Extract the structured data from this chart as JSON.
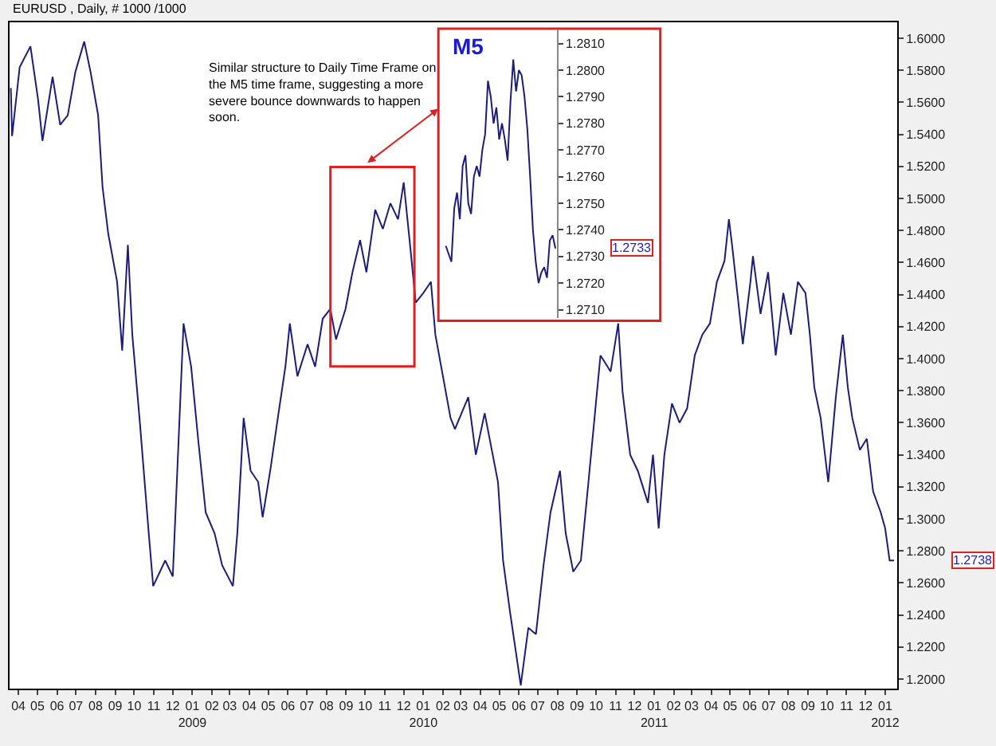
{
  "chart_data": [
    {
      "type": "line",
      "title": "EURUSD , Daily, # 1000 /1000",
      "x": [
        "2008-03-20",
        "2008-03-22",
        "2008-04-03",
        "2008-04-20",
        "2008-05-02",
        "2008-05-09",
        "2008-05-25",
        "2008-06-06",
        "2008-06-18",
        "2008-06-30",
        "2008-07-14",
        "2008-07-24",
        "2008-08-05",
        "2008-08-12",
        "2008-08-21",
        "2008-09-04",
        "2008-09-12",
        "2008-09-21",
        "2008-09-28",
        "2008-10-10",
        "2008-10-24",
        "2008-10-31",
        "2008-11-19",
        "2008-12-01",
        "2008-12-18",
        "2008-12-30",
        "2009-01-10",
        "2009-01-22",
        "2009-02-05",
        "2009-02-17",
        "2009-03-06",
        "2009-03-13",
        "2009-03-23",
        "2009-04-03",
        "2009-04-15",
        "2009-04-22",
        "2009-05-04",
        "2009-05-16",
        "2009-05-28",
        "2009-06-04",
        "2009-06-16",
        "2009-07-02",
        "2009-07-14",
        "2009-07-26",
        "2009-08-07",
        "2009-08-16",
        "2009-08-31",
        "2009-09-11",
        "2009-09-23",
        "2009-10-03",
        "2009-10-17",
        "2009-10-29",
        "2009-11-10",
        "2009-11-22",
        "2009-12-01",
        "2009-12-11",
        "2009-12-20",
        "2010-01-01",
        "2010-01-13",
        "2010-01-20",
        "2010-02-01",
        "2010-02-13",
        "2010-02-20",
        "2010-03-13",
        "2010-03-25",
        "2010-04-08",
        "2010-04-29",
        "2010-05-07",
        "2010-05-18",
        "2010-06-04",
        "2010-06-16",
        "2010-06-28",
        "2010-07-10",
        "2010-07-21",
        "2010-08-05",
        "2010-08-14",
        "2010-08-26",
        "2010-09-07",
        "2010-09-19",
        "2010-09-30",
        "2010-10-08",
        "2010-10-24",
        "2010-11-05",
        "2010-11-12",
        "2010-11-24",
        "2010-12-06",
        "2010-12-22",
        "2010-12-30",
        "2011-01-08",
        "2011-01-17",
        "2011-01-29",
        "2011-02-10",
        "2011-02-22",
        "2011-03-06",
        "2011-03-18",
        "2011-03-30",
        "2011-04-10",
        "2011-04-22",
        "2011-04-29",
        "2011-05-04",
        "2011-05-14",
        "2011-05-21",
        "2011-06-02",
        "2011-06-06",
        "2011-06-18",
        "2011-06-30",
        "2011-07-12",
        "2011-07-24",
        "2011-08-05",
        "2011-08-16",
        "2011-08-28",
        "2011-09-04",
        "2011-09-11",
        "2011-09-21",
        "2011-10-03",
        "2011-10-15",
        "2011-10-26",
        "2011-11-03",
        "2011-11-10",
        "2011-11-22",
        "2011-12-03",
        "2011-12-13",
        "2011-12-25",
        "2012-01-01",
        "2012-01-08",
        "2012-01-15"
      ],
      "series": [
        {
          "color": "#1c1c7a",
          "values": [
            1.569,
            1.539,
            1.582,
            1.595,
            1.562,
            1.536,
            1.576,
            1.546,
            1.552,
            1.579,
            1.598,
            1.579,
            1.552,
            1.507,
            1.478,
            1.448,
            1.405,
            1.471,
            1.415,
            1.36,
            1.291,
            1.258,
            1.274,
            1.264,
            1.422,
            1.395,
            1.35,
            1.304,
            1.291,
            1.271,
            1.258,
            1.291,
            1.363,
            1.33,
            1.323,
            1.301,
            1.33,
            1.363,
            1.395,
            1.422,
            1.389,
            1.409,
            1.395,
            1.425,
            1.431,
            1.412,
            1.431,
            1.454,
            1.474,
            1.454,
            1.493,
            1.481,
            1.497,
            1.487,
            1.51,
            1.471,
            1.435,
            1.441,
            1.448,
            1.415,
            1.389,
            1.363,
            1.356,
            1.376,
            1.34,
            1.366,
            1.323,
            1.274,
            1.242,
            1.196,
            1.232,
            1.228,
            1.271,
            1.304,
            1.33,
            1.291,
            1.267,
            1.274,
            1.323,
            1.369,
            1.402,
            1.392,
            1.422,
            1.379,
            1.34,
            1.33,
            1.31,
            1.34,
            1.294,
            1.34,
            1.372,
            1.36,
            1.369,
            1.402,
            1.415,
            1.422,
            1.448,
            1.461,
            1.487,
            1.471,
            1.435,
            1.409,
            1.448,
            1.464,
            1.428,
            1.454,
            1.402,
            1.441,
            1.415,
            1.448,
            1.441,
            1.415,
            1.382,
            1.363,
            1.323,
            1.376,
            1.415,
            1.382,
            1.363,
            1.343,
            1.35,
            1.317,
            1.304,
            1.294,
            1.274,
            1.274
          ]
        }
      ],
      "xlim": [
        "2008-03-18",
        "2012-01-20"
      ],
      "xticks": [
        {
          "value": "2008-04",
          "label": "04"
        },
        {
          "value": "2008-05",
          "label": "05"
        },
        {
          "value": "2008-06",
          "label": "06"
        },
        {
          "value": "2008-07",
          "label": "07"
        },
        {
          "value": "2008-08",
          "label": "08"
        },
        {
          "value": "2008-09",
          "label": "09"
        },
        {
          "value": "2008-10",
          "label": "10"
        },
        {
          "value": "2008-11",
          "label": "11"
        },
        {
          "value": "2008-12",
          "label": "12"
        },
        {
          "value": "2009-01",
          "label": "01\n2009"
        },
        {
          "value": "2009-02",
          "label": "02"
        },
        {
          "value": "2009-03",
          "label": "03"
        },
        {
          "value": "2009-04",
          "label": "04"
        },
        {
          "value": "2009-05",
          "label": "05"
        },
        {
          "value": "2009-06",
          "label": "06"
        },
        {
          "value": "2009-07",
          "label": "07"
        },
        {
          "value": "2009-08",
          "label": "08"
        },
        {
          "value": "2009-09",
          "label": "09"
        },
        {
          "value": "2009-10",
          "label": "10"
        },
        {
          "value": "2009-11",
          "label": "11"
        },
        {
          "value": "2009-12",
          "label": "12"
        },
        {
          "value": "2010-01",
          "label": "01\n2010"
        },
        {
          "value": "2010-02",
          "label": "02"
        },
        {
          "value": "2010-03",
          "label": "03"
        },
        {
          "value": "2010-04",
          "label": "04"
        },
        {
          "value": "2010-05",
          "label": "05"
        },
        {
          "value": "2010-06",
          "label": "06"
        },
        {
          "value": "2010-07",
          "label": "07"
        },
        {
          "value": "2010-08",
          "label": "08"
        },
        {
          "value": "2010-09",
          "label": "09"
        },
        {
          "value": "2010-10",
          "label": "10"
        },
        {
          "value": "2010-11",
          "label": "11"
        },
        {
          "value": "2010-12",
          "label": "12"
        },
        {
          "value": "2011-01",
          "label": "01\n2011"
        },
        {
          "value": "2011-02",
          "label": "02"
        },
        {
          "value": "2011-03",
          "label": "03"
        },
        {
          "value": "2011-04",
          "label": "04"
        },
        {
          "value": "2011-05",
          "label": "05"
        },
        {
          "value": "2011-06",
          "label": "06"
        },
        {
          "value": "2011-07",
          "label": "07"
        },
        {
          "value": "2011-08",
          "label": "08"
        },
        {
          "value": "2011-09",
          "label": "09"
        },
        {
          "value": "2011-10",
          "label": "10"
        },
        {
          "value": "2011-11",
          "label": "11"
        },
        {
          "value": "2011-12",
          "label": "12"
        },
        {
          "value": "2012-01",
          "label": "01\n2012"
        }
      ],
      "ylim": [
        1.194,
        1.61
      ],
      "yticks": [
        {
          "value": 1.2,
          "label": "1.2000"
        },
        {
          "value": 1.22,
          "label": "1.2200"
        },
        {
          "value": 1.24,
          "label": "1.2400"
        },
        {
          "value": 1.26,
          "label": "1.2600"
        },
        {
          "value": 1.28,
          "label": "1.2800"
        },
        {
          "value": 1.3,
          "label": "1.3000"
        },
        {
          "value": 1.32,
          "label": "1.3200"
        },
        {
          "value": 1.34,
          "label": "1.3400"
        },
        {
          "value": 1.36,
          "label": "1.3600"
        },
        {
          "value": 1.38,
          "label": "1.3800"
        },
        {
          "value": 1.4,
          "label": "1.4000"
        },
        {
          "value": 1.42,
          "label": "1.4200"
        },
        {
          "value": 1.44,
          "label": "1.4400"
        },
        {
          "value": 1.46,
          "label": "1.4600"
        },
        {
          "value": 1.48,
          "label": "1.4800"
        },
        {
          "value": 1.5,
          "label": "1.5000"
        },
        {
          "value": 1.52,
          "label": "1.5200"
        },
        {
          "value": 1.54,
          "label": "1.5400"
        },
        {
          "value": 1.56,
          "label": "1.5600"
        },
        {
          "value": 1.58,
          "label": "1.5800"
        },
        {
          "value": 1.6,
          "label": "1.6000"
        }
      ],
      "annotations": [
        "Similar structure to Daily Time Frame on\nthe M5 time frame, suggesting a more\nsevere bounce downwards to happen\nsoon.",
        "1.2738"
      ]
    },
    {
      "type": "line",
      "title": "M5",
      "categories": [
        null,
        null,
        null,
        null,
        null,
        null,
        null,
        null,
        null,
        null,
        null,
        null,
        null,
        null,
        null,
        null,
        null,
        null,
        null,
        null,
        null,
        null,
        null,
        null,
        null,
        null,
        null,
        null,
        null,
        null,
        null,
        null,
        null,
        null,
        null,
        null,
        null,
        null,
        null,
        null
      ],
      "series": [
        {
          "color": "#1c1c7a",
          "values": [
            1.2734,
            1.2731,
            1.2728,
            1.2748,
            1.2754,
            1.2744,
            1.2764,
            1.2768,
            1.275,
            1.2746,
            1.276,
            1.2764,
            1.276,
            1.277,
            1.2776,
            1.2796,
            1.279,
            1.278,
            1.2786,
            1.2774,
            1.278,
            1.2774,
            1.2766,
            1.2788,
            1.2804,
            1.2792,
            1.28,
            1.2798,
            1.279,
            1.2778,
            1.276,
            1.274,
            1.2728,
            1.272,
            1.2724,
            1.2726,
            1.2722,
            1.2736,
            1.2738,
            1.2733
          ]
        }
      ],
      "ylim": [
        1.2707,
        1.2815
      ],
      "yticks": [
        {
          "value": 1.271,
          "label": "1.2710"
        },
        {
          "value": 1.272,
          "label": "1.2720"
        },
        {
          "value": 1.273,
          "label": "1.2730"
        },
        {
          "value": 1.274,
          "label": "1.2740"
        },
        {
          "value": 1.275,
          "label": "1.2750"
        },
        {
          "value": 1.276,
          "label": "1.2760"
        },
        {
          "value": 1.277,
          "label": "1.2770"
        },
        {
          "value": 1.278,
          "label": "1.2780"
        },
        {
          "value": 1.279,
          "label": "1.2790"
        },
        {
          "value": 1.28,
          "label": "1.2800"
        },
        {
          "value": 1.281,
          "label": "1.2810"
        }
      ],
      "annotations": [
        "1.2733"
      ]
    }
  ]
}
